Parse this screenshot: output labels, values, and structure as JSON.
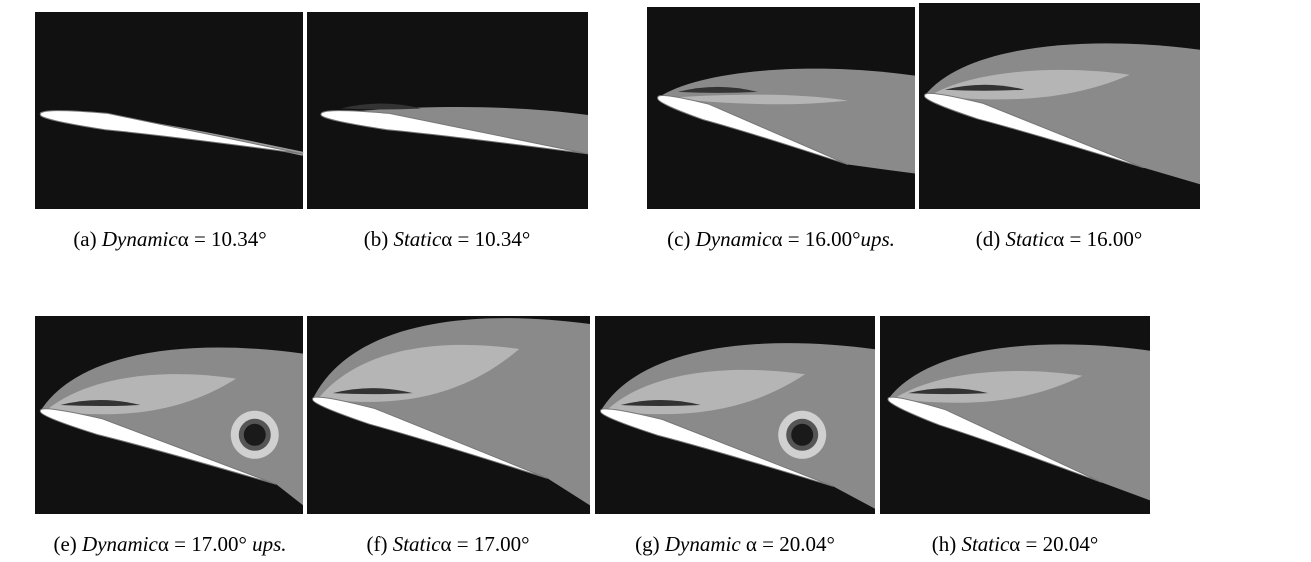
{
  "panels": [
    {
      "caption": [
        {
          "text": "(a) "
        },
        {
          "text": "Dynamic",
          "italic": true
        },
        {
          "text": "α = 10.34°"
        }
      ]
    },
    {
      "caption": [
        {
          "text": "(b) "
        },
        {
          "text": "Static",
          "italic": true
        },
        {
          "text": "α = 10.34°"
        }
      ]
    },
    {
      "caption": [
        {
          "text": "(c) "
        },
        {
          "text": "Dynamic",
          "italic": true
        },
        {
          "text": "α = 16.00°"
        },
        {
          "text": "ups.",
          "italic": true
        }
      ]
    },
    {
      "caption": [
        {
          "text": "(d) "
        },
        {
          "text": "Static",
          "italic": true
        },
        {
          "text": "α = 16.00°"
        }
      ]
    },
    {
      "caption": [
        {
          "text": "(e) "
        },
        {
          "text": "Dynamic",
          "italic": true
        },
        {
          "text": "α = 17.00° "
        },
        {
          "text": "ups.",
          "italic": true
        }
      ]
    },
    {
      "caption": [
        {
          "text": "(f) "
        },
        {
          "text": "Static",
          "italic": true
        },
        {
          "text": "α = 17.00°"
        }
      ]
    },
    {
      "caption": [
        {
          "text": "(g) "
        },
        {
          "text": "Dynamic",
          "italic": true
        },
        {
          "text": " α = 20.04°"
        }
      ]
    },
    {
      "caption": [
        {
          "text": "(h) "
        },
        {
          "text": "Static",
          "italic": true
        },
        {
          "text": "α = 20.04°"
        }
      ]
    }
  ]
}
